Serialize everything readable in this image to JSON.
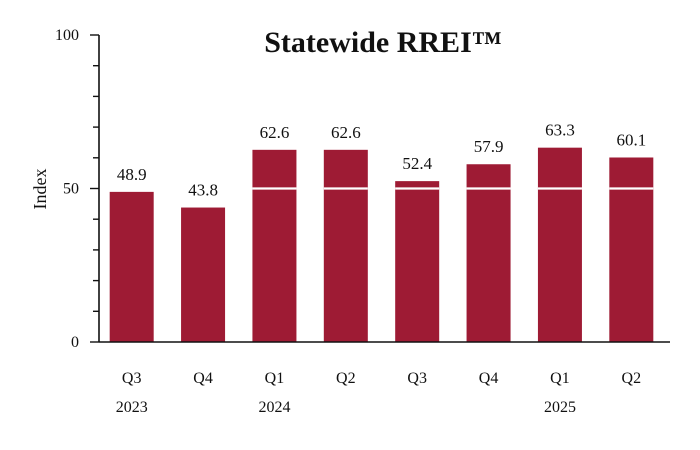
{
  "chart_data": {
    "type": "bar",
    "title": "Statewide RREI™",
    "ylabel": "Index",
    "xlabel": "",
    "ylim": [
      0,
      100
    ],
    "y_ticks": [
      "0",
      "50",
      "100"
    ],
    "y_tick_values": [
      0,
      50,
      100
    ],
    "categories": [
      "Q3",
      "Q4",
      "Q1",
      "Q2",
      "Q3",
      "Q4",
      "Q1",
      "Q2"
    ],
    "years": [
      "2023",
      "",
      "2024",
      "",
      "",
      "",
      "2025",
      ""
    ],
    "values": [
      48.9,
      43.8,
      62.6,
      62.6,
      52.4,
      57.9,
      63.3,
      60.1
    ],
    "value_labels": [
      "48.9",
      "43.8",
      "62.6",
      "62.6",
      "52.4",
      "57.9",
      "63.3",
      "60.1"
    ],
    "grid": false,
    "reference_line": 50,
    "bar_color": "#9e1b34",
    "reference_line_color": "#ffffff"
  }
}
